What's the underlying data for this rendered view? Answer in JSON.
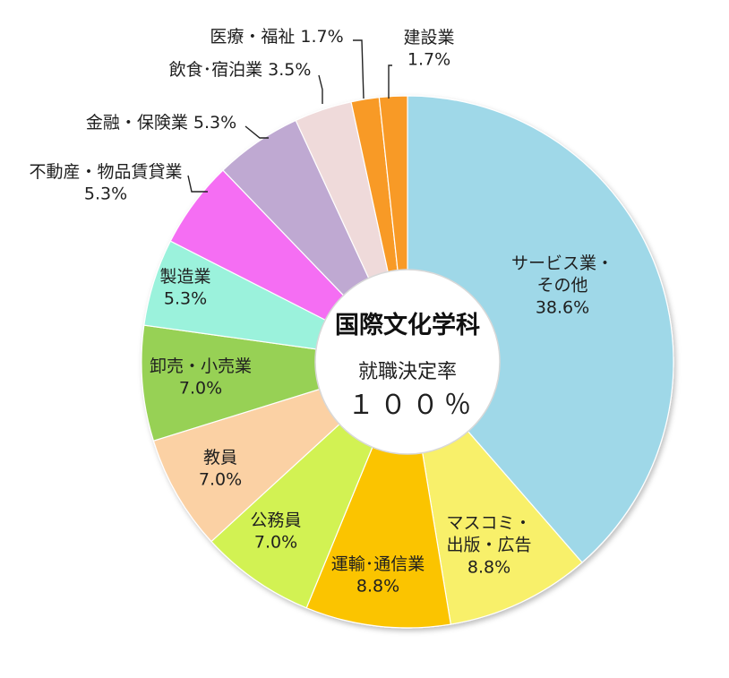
{
  "chart_data": {
    "type": "pie",
    "subtype": "donut",
    "center": {
      "title": "国際文化学科",
      "subtitle": "就職決定率",
      "value": "１００％"
    },
    "slices": [
      {
        "label_lines": [
          "サービス業・",
          "その他",
          "38.6%"
        ],
        "value": 38.6,
        "color": "#9fd8e8"
      },
      {
        "label_lines": [
          "マスコミ・",
          "出版・広告",
          "8.8%"
        ],
        "value": 8.8,
        "color": "#f8f06a"
      },
      {
        "label_lines": [
          "運輸･通信業",
          "8.8%"
        ],
        "value": 8.8,
        "color": "#fbc400"
      },
      {
        "label_lines": [
          "公務員",
          "7.0%"
        ],
        "value": 7.0,
        "color": "#d2f253"
      },
      {
        "label_lines": [
          "教員",
          "7.0%"
        ],
        "value": 7.0,
        "color": "#fbd1a4"
      },
      {
        "label_lines": [
          "卸売・小売業",
          "7.0%"
        ],
        "value": 7.0,
        "color": "#97d155"
      },
      {
        "label_lines": [
          "製造業",
          "5.3%"
        ],
        "value": 5.3,
        "color": "#9bf2dc"
      },
      {
        "label_lines": [
          "不動産・物品賃貸業",
          "5.3%"
        ],
        "value": 5.3,
        "color": "#f56ef3"
      },
      {
        "label_lines": [
          "金融・保険業 5.3%"
        ],
        "value": 5.3,
        "color": "#bfa9d2"
      },
      {
        "label_lines": [
          "飲食･宿泊業 3.5%"
        ],
        "value": 3.5,
        "color": "#efdada"
      },
      {
        "label_lines": [
          "医療・福祉 1.7%"
        ],
        "value": 1.7,
        "color": "#f89a26"
      },
      {
        "label_lines": [
          "建設業",
          "1.7%"
        ],
        "value": 1.7,
        "color": "#f89a26"
      }
    ]
  }
}
